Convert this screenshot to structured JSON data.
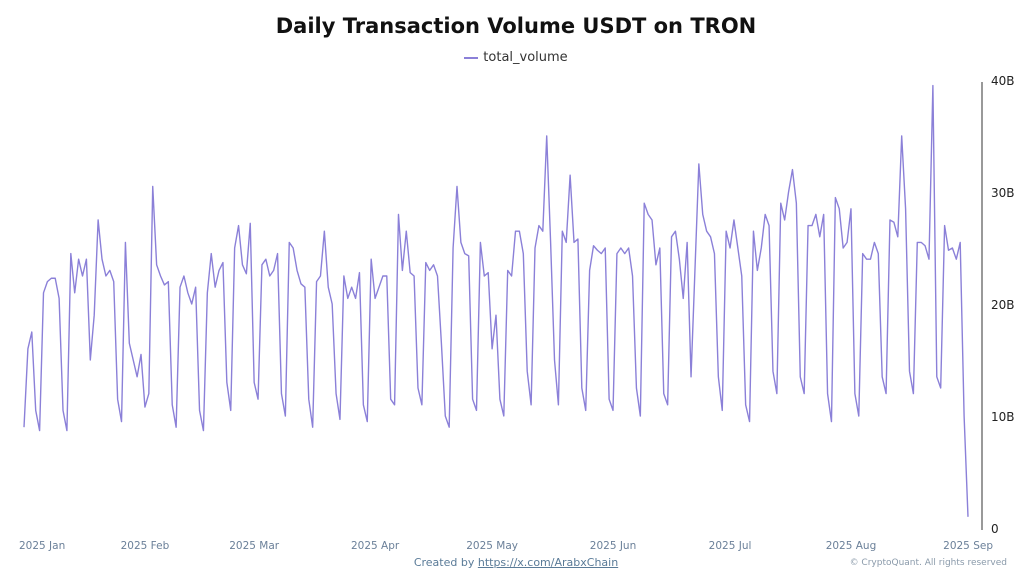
{
  "chart_data": {
    "type": "line",
    "title": "Daily Transaction Volume USDT on TRON",
    "xlabel": "",
    "ylabel": "",
    "ylim": [
      0,
      40000000000
    ],
    "y_tick_values": [
      0,
      10000000000,
      20000000000,
      30000000000,
      40000000000
    ],
    "y_tick_labels": [
      "0",
      "10B",
      "20B",
      "30B",
      "40B"
    ],
    "x_tick_dates": [
      "2025-01-01",
      "2025-02-01",
      "2025-03-01",
      "2025-04-01",
      "2025-05-01",
      "2025-06-01",
      "2025-07-01",
      "2025-08-01",
      "2025-09-01"
    ],
    "x_tick_labels": [
      "2025 Jan",
      "2025 Feb",
      "2025 Mar",
      "2025 Apr",
      "2025 May",
      "2025 Jun",
      "2025 Jul",
      "2025 Aug",
      "2025 Sep"
    ],
    "x_start": "2025-01-01",
    "legend_position": "top-center",
    "grid": false,
    "series": [
      {
        "name": "total_volume",
        "color": "#8b80d8",
        "values": [
          9.0,
          16.0,
          17.5,
          10.5,
          8.7,
          21.0,
          22.0,
          22.3,
          22.3,
          20.5,
          10.5,
          8.7,
          24.5,
          21.0,
          24.0,
          22.5,
          24.0,
          15.0,
          19.0,
          27.5,
          24.0,
          22.5,
          23.0,
          22.0,
          11.5,
          9.5,
          25.5,
          16.5,
          15.0,
          13.5,
          15.5,
          10.8,
          12.0,
          30.5,
          23.5,
          22.5,
          21.7,
          22.0,
          11.0,
          9.0,
          21.5,
          22.5,
          21.0,
          20.0,
          21.5,
          10.5,
          8.7,
          21.0,
          24.5,
          21.5,
          23.0,
          23.7,
          13.0,
          10.5,
          25.0,
          27.0,
          23.5,
          22.7,
          27.2,
          13.0,
          11.5,
          23.5,
          24.0,
          22.5,
          23.0,
          24.5,
          12.0,
          10.0,
          25.5,
          25.0,
          23.0,
          21.8,
          21.5,
          11.5,
          9.0,
          22.0,
          22.5,
          26.5,
          21.5,
          20.0,
          12.0,
          9.7,
          22.5,
          20.5,
          21.5,
          20.5,
          22.8,
          11.0,
          9.5,
          24.0,
          20.5,
          21.5,
          22.5,
          22.5,
          11.5,
          11.0,
          28.0,
          23.0,
          26.5,
          22.8,
          22.5,
          12.5,
          11.0,
          23.7,
          23.0,
          23.5,
          22.5,
          16.5,
          10.0,
          9.0,
          25.0,
          30.5,
          25.5,
          24.5,
          24.3,
          11.5,
          10.5,
          25.5,
          22.5,
          22.8,
          16.0,
          19.0,
          11.5,
          10.0,
          23.0,
          22.5,
          26.5,
          26.5,
          24.5,
          14.0,
          11.0,
          25.0,
          27.0,
          26.5,
          35.0,
          25.5,
          15.0,
          11.0,
          26.5,
          25.5,
          31.5,
          25.5,
          25.8,
          12.5,
          10.5,
          23.0,
          25.2,
          24.8,
          24.5,
          25.0,
          11.5,
          10.5,
          24.5,
          25.0,
          24.5,
          25.0,
          22.5,
          12.5,
          10.0,
          29.0,
          28.0,
          27.5,
          23.5,
          25.0,
          12.0,
          11.0,
          26.0,
          26.5,
          24.0,
          20.5,
          25.5,
          13.5,
          23.0,
          32.5,
          28.0,
          26.5,
          26.0,
          24.5,
          13.5,
          10.5,
          26.5,
          25.0,
          27.5,
          25.0,
          22.5,
          11.0,
          9.5,
          26.5,
          23.0,
          25.0,
          28.0,
          27.0,
          14.0,
          12.0,
          29.0,
          27.5,
          30.0,
          32.0,
          29.0,
          13.5,
          12.0,
          27.0,
          27.0,
          28.0,
          26.0,
          28.0,
          12.0,
          9.5,
          29.5,
          28.5,
          25.0,
          25.5,
          28.5,
          12.0,
          10.0,
          24.5,
          24.0,
          24.0,
          25.5,
          24.5,
          13.5,
          12.0,
          27.5,
          27.3,
          26.0,
          35.0,
          28.5,
          14.0,
          12.0,
          25.5,
          25.5,
          25.2,
          24.0,
          39.5,
          13.5,
          12.5,
          27.0,
          24.8,
          25.0,
          24.0,
          25.5,
          10.0,
          1.0
        ]
      }
    ]
  },
  "footer": {
    "created_by_prefix": "Created by ",
    "created_by_link": "https://x.com/ArabxChain",
    "copyright": "© CryptoQuant. All rights reserved"
  }
}
